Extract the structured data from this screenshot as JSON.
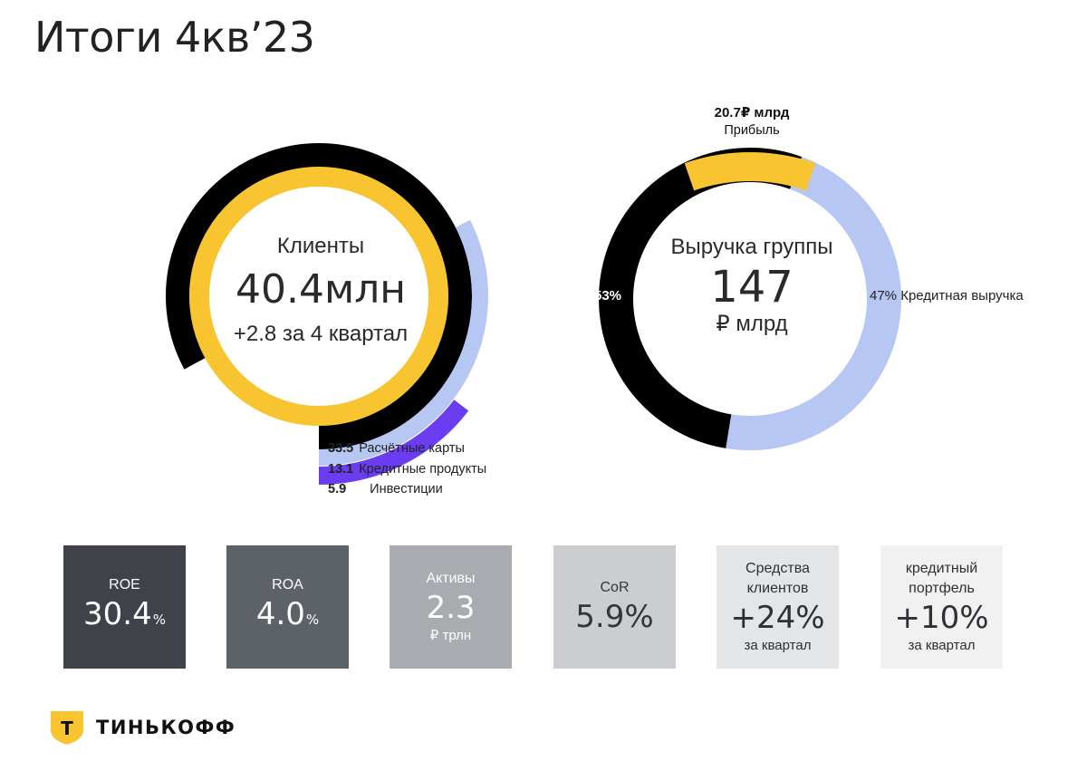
{
  "title": "Итоги 4кв’23",
  "chart_data": [
    {
      "type": "donut",
      "center": {
        "label": "Клиенты",
        "value": "40.4млн",
        "subtitle": "+2.8 за 4 квартал"
      },
      "total": 40.4,
      "series": [
        {
          "name": "Расчётные карты",
          "value": 33.5,
          "color": "#000000"
        },
        {
          "name": "Кредитные продукты",
          "value": 13.1,
          "color": "#b6c7f3"
        },
        {
          "name": "Инвестиции",
          "value": 5.9,
          "color": "#6a3df0"
        }
      ]
    },
    {
      "type": "donut",
      "center": {
        "label": "Выручка группы",
        "value": "147",
        "unit": "₽ млрд"
      },
      "total": 147,
      "series": [
        {
          "name": "",
          "value": 53,
          "label": "53%",
          "color": "#000000"
        },
        {
          "name": "Кредитная выручка",
          "value": 47,
          "label": "47%",
          "color": "#b6c7f3"
        }
      ],
      "profit": {
        "value": "20.7₽ млрд",
        "label": "Прибыль",
        "color": "#f8c430"
      }
    }
  ],
  "clients_legend": [
    {
      "value": "33.5",
      "label": "Расчётные карты"
    },
    {
      "value": "13.1",
      "label": "Кредитные продукты"
    },
    {
      "value": "5.9",
      "label": "Инвестиции"
    }
  ],
  "revenue_labels": {
    "black_pct": "53%",
    "credit_pct": "47%",
    "credit_label": "Кредитная выручка"
  },
  "kpis": [
    {
      "label": "ROE",
      "value": "30.4",
      "suffix": "%"
    },
    {
      "label": "ROA",
      "value": "4.0",
      "suffix": "%"
    },
    {
      "label": "Активы",
      "value": "2.3",
      "unit": "₽ трлн"
    },
    {
      "label": "CoR",
      "value": "5.9%"
    },
    {
      "label": "Средства клиентов",
      "value": "+24%",
      "unit": "за квартал"
    },
    {
      "label": "кредитный портфель",
      "value": "+10%",
      "unit": "за квартал"
    }
  ],
  "colors": {
    "yellow": "#f8c430",
    "black": "#000000",
    "lavender": "#b6c7f3",
    "purple": "#6a3df0"
  },
  "logo": {
    "text": "ТИНЬКОФФ",
    "mark": "Т"
  }
}
